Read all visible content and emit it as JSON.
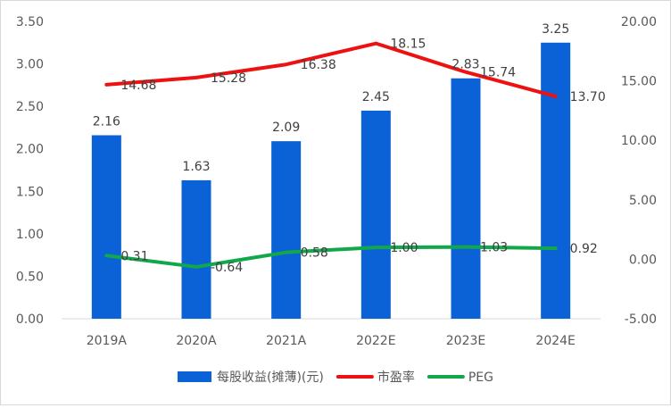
{
  "chart_data": {
    "type": "bar",
    "categories": [
      "2019A",
      "2020A",
      "2021A",
      "2022E",
      "2023E",
      "2024E"
    ],
    "series": [
      {
        "name": "每股收益(摊薄)(元)",
        "kind": "bar",
        "axis": "left",
        "color": "#0b62d6",
        "values": [
          2.16,
          1.63,
          2.09,
          2.45,
          2.83,
          3.25
        ],
        "labels": [
          "2.16",
          "1.63",
          "2.09",
          "2.45",
          "2.83",
          "3.25"
        ]
      },
      {
        "name": "市盈率",
        "kind": "line",
        "axis": "right",
        "color": "#ee1111",
        "values": [
          14.68,
          15.28,
          16.38,
          18.15,
          15.74,
          13.7
        ],
        "labels": [
          "14.68",
          "15.28",
          "16.38",
          "18.15",
          "15.74",
          "13.70"
        ]
      },
      {
        "name": "PEG",
        "kind": "line",
        "axis": "right",
        "color": "#10a84a",
        "values": [
          0.31,
          -0.64,
          0.58,
          1.0,
          1.03,
          0.92
        ],
        "labels": [
          "0.31",
          "-0.64",
          "0.58",
          "1.00",
          "1.03",
          "0.92"
        ]
      }
    ],
    "y_left": {
      "min": 0,
      "max": 3.5,
      "ticks": [
        0,
        0.5,
        1,
        1.5,
        2,
        2.5,
        3,
        3.5
      ],
      "tick_labels": [
        "0.00",
        "0.50",
        "1.00",
        "1.50",
        "2.00",
        "2.50",
        "3.00",
        "3.50"
      ]
    },
    "y_right": {
      "min": -5,
      "max": 20,
      "ticks": [
        -5,
        0,
        5,
        10,
        15,
        20
      ],
      "tick_labels": [
        "-5.00",
        "0.00",
        "5.00",
        "10.00",
        "15.00",
        "20.00"
      ]
    },
    "grid": false,
    "legend": "bottom"
  }
}
